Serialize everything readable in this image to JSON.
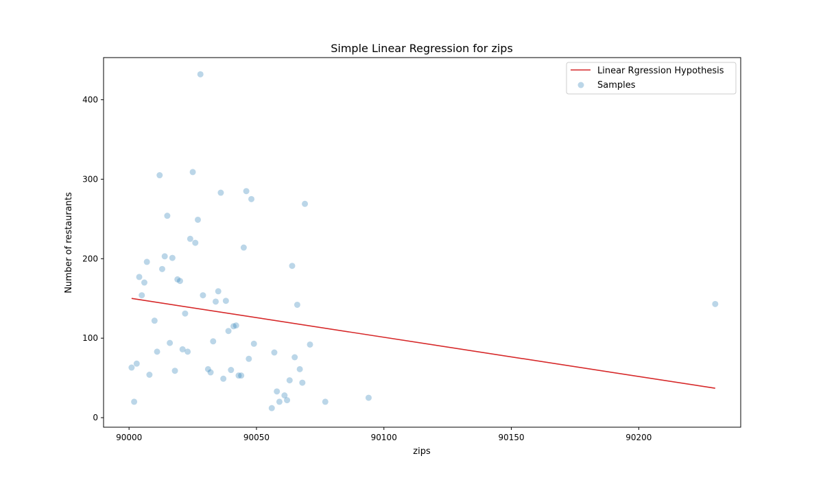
{
  "chart_data": {
    "type": "scatter",
    "title": "Simple Linear Regression for zips",
    "xlabel": "zips",
    "ylabel": "Number of restaurants",
    "xlim": [
      89990,
      90240
    ],
    "ylim": [
      -12,
      453
    ],
    "xticks": [
      90000,
      90050,
      90100,
      90150,
      90200
    ],
    "yticks": [
      0,
      100,
      200,
      300,
      400
    ],
    "grid": false,
    "legend_position": "top-right",
    "colors": {
      "samples": "#1f77b4",
      "regression_line": "#d62728"
    },
    "series": [
      {
        "name": "Linear Rgression Hypothesis",
        "kind": "line",
        "x": [
          90001,
          90230
        ],
        "y": [
          150,
          37
        ]
      },
      {
        "name": "Samples",
        "kind": "scatter",
        "points": [
          [
            90001,
            63
          ],
          [
            90002,
            20
          ],
          [
            90003,
            68
          ],
          [
            90004,
            177
          ],
          [
            90005,
            154
          ],
          [
            90006,
            170
          ],
          [
            90007,
            196
          ],
          [
            90008,
            54
          ],
          [
            90010,
            122
          ],
          [
            90011,
            83
          ],
          [
            90012,
            305
          ],
          [
            90013,
            187
          ],
          [
            90014,
            203
          ],
          [
            90015,
            254
          ],
          [
            90016,
            94
          ],
          [
            90017,
            201
          ],
          [
            90018,
            59
          ],
          [
            90019,
            174
          ],
          [
            90020,
            172
          ],
          [
            90021,
            86
          ],
          [
            90022,
            131
          ],
          [
            90023,
            83
          ],
          [
            90024,
            225
          ],
          [
            90025,
            309
          ],
          [
            90026,
            220
          ],
          [
            90027,
            249
          ],
          [
            90028,
            432
          ],
          [
            90029,
            154
          ],
          [
            90031,
            61
          ],
          [
            90032,
            57
          ],
          [
            90033,
            96
          ],
          [
            90034,
            146
          ],
          [
            90035,
            159
          ],
          [
            90036,
            283
          ],
          [
            90037,
            49
          ],
          [
            90038,
            147
          ],
          [
            90039,
            109
          ],
          [
            90040,
            60
          ],
          [
            90041,
            115
          ],
          [
            90042,
            116
          ],
          [
            90043,
            53
          ],
          [
            90044,
            53
          ],
          [
            90045,
            214
          ],
          [
            90046,
            285
          ],
          [
            90047,
            74
          ],
          [
            90048,
            275
          ],
          [
            90049,
            93
          ],
          [
            90056,
            12
          ],
          [
            90057,
            82
          ],
          [
            90058,
            33
          ],
          [
            90059,
            20
          ],
          [
            90061,
            28
          ],
          [
            90062,
            22
          ],
          [
            90063,
            47
          ],
          [
            90064,
            191
          ],
          [
            90065,
            76
          ],
          [
            90066,
            142
          ],
          [
            90067,
            61
          ],
          [
            90068,
            44
          ],
          [
            90069,
            269
          ],
          [
            90071,
            92
          ],
          [
            90077,
            20
          ],
          [
            90094,
            25
          ],
          [
            90230,
            143
          ]
        ]
      }
    ]
  }
}
